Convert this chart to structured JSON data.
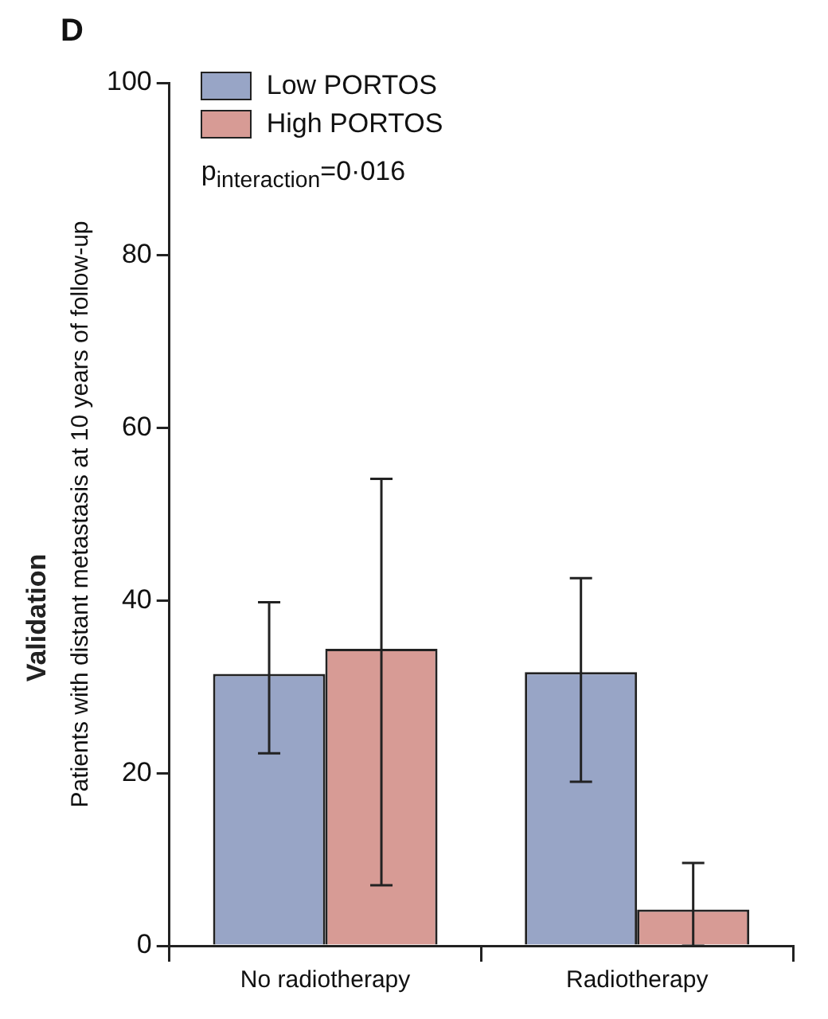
{
  "chart_data": {
    "type": "bar",
    "title": "D",
    "ylabel": "Patients with distant metastasis at 10 years of follow-up",
    "annotations": [
      "Validation",
      "p$_{interaction}$=0·016"
    ],
    "categories": [
      "No radiotherapy",
      "Radiotherapy"
    ],
    "series": [
      {
        "name": "Low PORTOS",
        "color": "#98a5c6",
        "values": [
          31.5,
          31.7
        ],
        "errors": [
          [
            22.3,
            39.8
          ],
          [
            19.0,
            42.6
          ]
        ]
      },
      {
        "name": "High PORTOS",
        "color": "#d79b95",
        "values": [
          34.4,
          4.2
        ],
        "errors": [
          [
            7.0,
            54.1
          ],
          [
            0,
            9.6
          ]
        ]
      }
    ],
    "ylim": [
      0,
      100
    ],
    "yticks": [
      0,
      20,
      40,
      60,
      80,
      100
    ],
    "grid": false,
    "legend": "top left"
  }
}
